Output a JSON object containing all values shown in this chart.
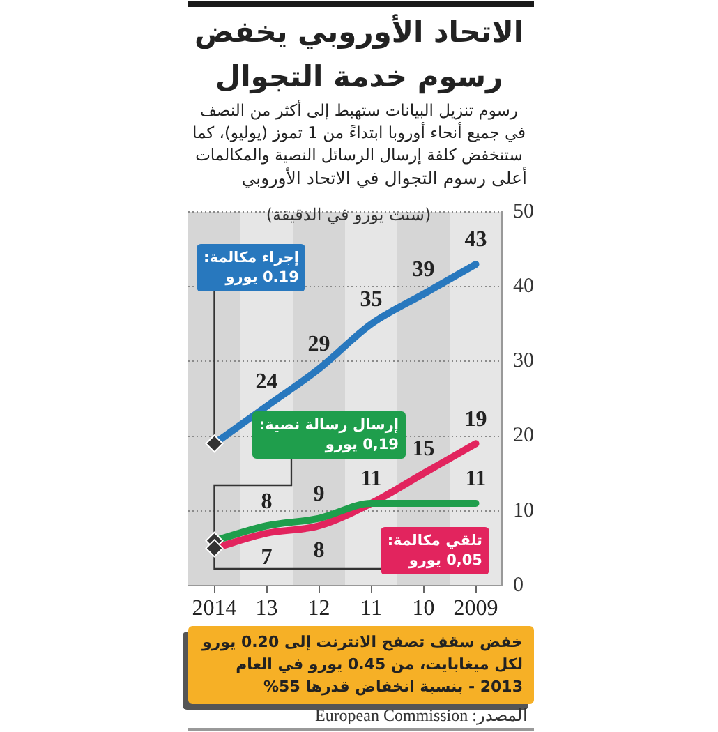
{
  "chart_data": {
    "type": "line",
    "title": "الاتحاد الأوروبي يخفض رسوم خدمة التجوال",
    "subtitle": "رسوم تنزيل البيانات ستهبط إلى أكثر من النصف في جميع أنحاء أوروبا ابتداءً من 1 تموز (يوليو)، كما ستنخفض كلفة إرسال الرسائل النصية والمكالمات",
    "ylabel": "(سنت يورو في الدقيقة)",
    "categories": [
      "2014",
      "13",
      "12",
      "11",
      "10",
      "2009"
    ],
    "series": [
      {
        "name": "إجراء مكالمة:",
        "color": "#2878be",
        "values": [
          19,
          24,
          29,
          35,
          39,
          43
        ],
        "value_labels": [
          null,
          "24",
          "29",
          "35",
          "39",
          "43"
        ]
      },
      {
        "name": "إرسال رسالة نصية:",
        "color": "#1f9e4c",
        "values": [
          6,
          8,
          9,
          11,
          11,
          11
        ],
        "value_labels": [
          null,
          "8",
          "9",
          null,
          null,
          "11"
        ]
      },
      {
        "name": "تلقي مكالمة:",
        "color": "#e2245e",
        "values": [
          5,
          7,
          8,
          11,
          15,
          19
        ],
        "value_labels": [
          null,
          "7",
          "8",
          "11",
          "15",
          "19"
        ]
      }
    ],
    "ylim": [
      0,
      50
    ],
    "yticks": [
      0,
      10,
      20,
      30,
      40,
      50
    ],
    "grid": "y",
    "annotations": [
      "أعلى رسوم التجوال في الاتحاد الأوروبي",
      "خفض سقف تصفح الانترنت إلى 0.20 يورو لكل ميغابايت، من 0.45 يورو في العام 2013 - بنسبة انخفاض قدرها 55%",
      "المصدر: European Commission",
      "0.19 يورو",
      "0,19 يورو",
      "0,05 يورو"
    ]
  }
}
